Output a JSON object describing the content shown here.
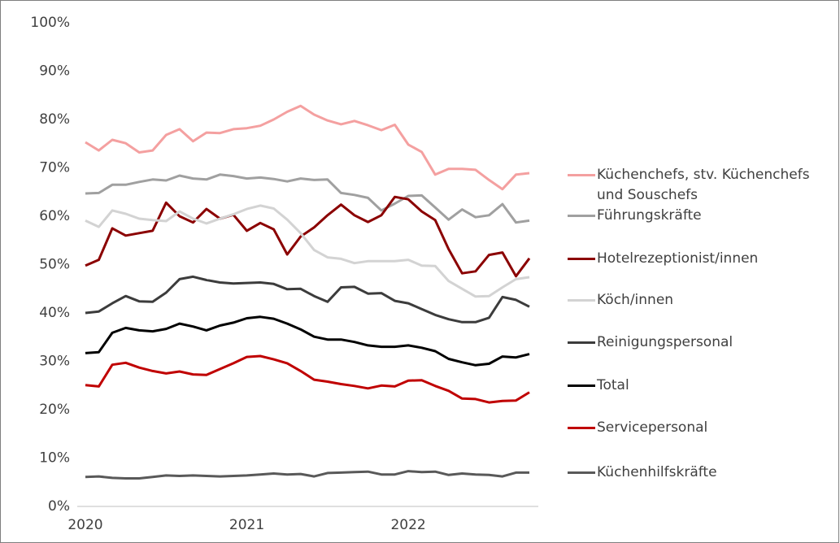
{
  "chart_data": {
    "type": "line",
    "categories": [
      "2020",
      null,
      null,
      null,
      null,
      null,
      null,
      null,
      null,
      null,
      null,
      null,
      "2021",
      null,
      null,
      null,
      null,
      null,
      null,
      null,
      null,
      null,
      null,
      null,
      "2022",
      null,
      null,
      null,
      null,
      null,
      null,
      null,
      null,
      null
    ],
    "ylim": [
      0,
      100
    ],
    "yticks": [
      {
        "value": 0,
        "label": "0%"
      },
      {
        "value": 10,
        "label": "10%"
      },
      {
        "value": 20,
        "label": "20%"
      },
      {
        "value": 30,
        "label": "30%"
      },
      {
        "value": 40,
        "label": "40%"
      },
      {
        "value": 50,
        "label": "50%"
      },
      {
        "value": 60,
        "label": "60%"
      },
      {
        "value": 70,
        "label": "70%"
      },
      {
        "value": 80,
        "label": "80%"
      },
      {
        "value": 90,
        "label": "90%"
      },
      {
        "value": 100,
        "label": "100%"
      }
    ],
    "grid": false,
    "legend": "right",
    "series": [
      {
        "name": "Küchenchefs, stv. Küchenchefs und Souschefs",
        "color": "#f4a0a0",
        "values": [
          75.3,
          73.6,
          75.8,
          75.1,
          73.2,
          73.6,
          76.8,
          78.0,
          75.5,
          77.3,
          77.2,
          78.0,
          78.2,
          78.7,
          80.0,
          81.6,
          82.8,
          81.0,
          79.8,
          79.0,
          79.7,
          78.8,
          77.8,
          78.9,
          74.8,
          73.3,
          68.6,
          69.8,
          69.8,
          69.6,
          67.5,
          65.6,
          68.6,
          68.9
        ]
      },
      {
        "name": "Führungskräfte",
        "color": "#a0a0a0",
        "values": [
          64.7,
          64.8,
          66.5,
          66.5,
          67.1,
          67.6,
          67.4,
          68.4,
          67.8,
          67.6,
          68.6,
          68.3,
          67.8,
          68.0,
          67.7,
          67.2,
          67.8,
          67.5,
          67.6,
          64.8,
          64.4,
          63.8,
          61.2,
          62.6,
          64.2,
          64.3,
          61.8,
          59.3,
          61.4,
          59.8,
          60.2,
          62.5,
          58.7,
          59.1
        ]
      },
      {
        "name": "Hotelrezeptionist/innen",
        "color": "#8b0000",
        "values": [
          49.8,
          51.0,
          57.5,
          56.0,
          56.5,
          57.0,
          62.8,
          60.0,
          58.7,
          61.5,
          59.5,
          60.3,
          57.0,
          58.6,
          57.3,
          52.1,
          55.8,
          57.7,
          60.2,
          62.4,
          60.2,
          58.8,
          60.2,
          64.0,
          63.5,
          61.0,
          59.2,
          53.2,
          48.2,
          48.6,
          52.0,
          52.5,
          47.6,
          51.3
        ]
      },
      {
        "name": "Köch/innen",
        "color": "#d3d3d3",
        "values": [
          59.1,
          57.8,
          61.2,
          60.5,
          59.5,
          59.2,
          59.0,
          61.0,
          59.5,
          58.5,
          59.5,
          60.4,
          61.5,
          62.2,
          61.6,
          59.3,
          56.5,
          53.0,
          51.5,
          51.2,
          50.3,
          50.7,
          50.7,
          50.7,
          51.0,
          49.8,
          49.7,
          46.6,
          45.0,
          43.4,
          43.5,
          45.3,
          47.0,
          47.4
        ]
      },
      {
        "name": "Reinigungspersonal",
        "color": "#3c3c3c",
        "values": [
          40.0,
          40.3,
          42.0,
          43.5,
          42.4,
          42.3,
          44.2,
          47.0,
          47.5,
          46.8,
          46.3,
          46.1,
          46.2,
          46.3,
          46.0,
          44.9,
          45.0,
          43.5,
          42.3,
          45.3,
          45.4,
          44.0,
          44.1,
          42.5,
          42.0,
          40.8,
          39.6,
          38.7,
          38.1,
          38.1,
          39.0,
          43.3,
          42.7,
          41.3
        ]
      },
      {
        "name": "Total",
        "color": "#000000",
        "values": [
          31.7,
          31.9,
          35.9,
          36.9,
          36.4,
          36.2,
          36.7,
          37.8,
          37.2,
          36.4,
          37.4,
          38.0,
          38.9,
          39.2,
          38.8,
          37.8,
          36.6,
          35.1,
          34.5,
          34.5,
          34.0,
          33.3,
          33.0,
          33.0,
          33.3,
          32.8,
          32.1,
          30.5,
          29.8,
          29.2,
          29.5,
          31.0,
          30.8,
          31.5
        ]
      },
      {
        "name": "Servicepersonal",
        "color": "#c00000",
        "values": [
          25.1,
          24.8,
          29.3,
          29.7,
          28.7,
          28.0,
          27.5,
          27.9,
          27.3,
          27.2,
          28.4,
          29.6,
          30.9,
          31.1,
          30.4,
          29.6,
          28.0,
          26.2,
          25.8,
          25.3,
          24.9,
          24.4,
          25.0,
          24.8,
          26.0,
          26.1,
          24.9,
          23.9,
          22.3,
          22.2,
          21.5,
          21.8,
          21.9,
          23.6
        ]
      },
      {
        "name": "Küchenhilfskräfte",
        "color": "#595959",
        "values": [
          6.1,
          6.2,
          5.9,
          5.8,
          5.8,
          6.1,
          6.4,
          6.3,
          6.4,
          6.3,
          6.2,
          6.3,
          6.4,
          6.6,
          6.8,
          6.6,
          6.7,
          6.2,
          6.9,
          7.0,
          7.1,
          7.2,
          6.6,
          6.6,
          7.3,
          7.1,
          7.2,
          6.5,
          6.8,
          6.6,
          6.5,
          6.2,
          7.0,
          7.0
        ]
      }
    ]
  }
}
